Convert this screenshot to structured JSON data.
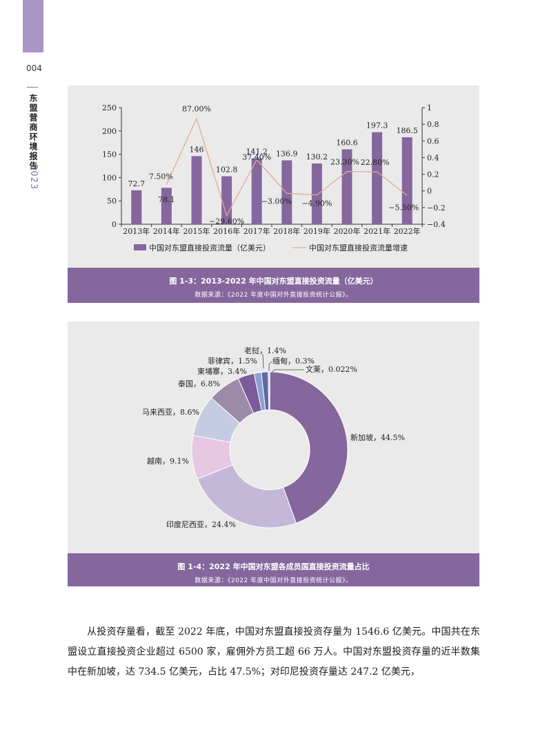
{
  "sidebar": {
    "page_number": "004",
    "book_title": "东盟营商环境报告",
    "book_year": "2023"
  },
  "figure1": {
    "caption": "图 1-3：2013-2022 年中国对东盟直接投资流量（亿美元）",
    "source": "数据来源：《2022 年度中国对外直接投资统计公报》。"
  },
  "figure2": {
    "caption": "图 1-4：2022 年中国对东盟各成员国直接投资流量占比",
    "source": "数据来源：《2022 年度中国对外直接投资统计公报》。"
  },
  "body": {
    "paragraph": "从投资存量看，截至 2022 年底，中国对东盟直接投资存量为 1546.6 亿美元。中国共在东盟设立直接投资企业超过 6500 家，雇佣外方员工超 66 万人。中国对东盟投资存量的近半数集中在新加坡，达 734.5 亿美元，占比 47.5%；对印尼投资存量达 247.2 亿美元，"
  },
  "chart_data": [
    {
      "type": "bar",
      "categories": [
        "2013年",
        "2014年",
        "2015年",
        "2016年",
        "2017年",
        "2018年",
        "2019年",
        "2020年",
        "2021年",
        "2022年"
      ],
      "series": [
        {
          "name": "中国对东盟直接投资流量（亿美元）",
          "type": "bar",
          "axis": "left",
          "values": [
            72.7,
            78.1,
            146,
            102.8,
            141.2,
            136.9,
            130.2,
            160.6,
            197.3,
            186.5
          ],
          "labels": [
            "72.7",
            "78.1",
            "146",
            "102.8",
            "141.2",
            "136.9",
            "130.2",
            "160.6",
            "197.3",
            "186.5"
          ],
          "color": "#85679e"
        },
        {
          "name": "中国对东盟直接投资流量增速",
          "type": "line",
          "axis": "right",
          "values": [
            null,
            0.075,
            0.87,
            -0.296,
            0.374,
            -0.03,
            -0.049,
            0.233,
            0.228,
            -0.055
          ],
          "labels": [
            "",
            "7.50%",
            "87.00%",
            "−29.60%",
            "37.40%",
            "−3.00%",
            "−4.90%",
            "23.30%",
            "22.80%",
            "−5.50%"
          ],
          "color": "#e3aa92"
        }
      ],
      "ylim": [
        0,
        250
      ],
      "yticks": [
        "0",
        "50",
        "100",
        "150",
        "200",
        "250"
      ],
      "y2lim": [
        -0.4,
        1
      ],
      "y2ticks": [
        "−0.4",
        "−0.2",
        "0",
        "0.2",
        "0.4",
        "0.6",
        "0.8",
        "1"
      ],
      "legend_position": "bottom"
    },
    {
      "type": "pie",
      "donut": true,
      "slices": [
        {
          "label": "新加坡，44.5%",
          "value": 44.5,
          "color": "#85679e"
        },
        {
          "label": "印度尼西亚，24.4%",
          "value": 24.4,
          "color": "#c3b8d8"
        },
        {
          "label": "越南，9.1%",
          "value": 9.1,
          "color": "#e6c8e0"
        },
        {
          "label": "马来西亚，8.6%",
          "value": 8.6,
          "color": "#c4cbe2"
        },
        {
          "label": "泰国，6.8%",
          "value": 6.8,
          "color": "#9c8ba8"
        },
        {
          "label": "柬埔寨，3.4%",
          "value": 3.4,
          "color": "#7d5a9a"
        },
        {
          "label": "菲律宾，1.5%",
          "value": 1.5,
          "color": "#8da1cf"
        },
        {
          "label": "老挝，1.4%",
          "value": 1.4,
          "color": "#5e68a8"
        },
        {
          "label": "缅甸，0.3%",
          "value": 0.3,
          "color": "#b9aed6"
        },
        {
          "label": "文莱，0.022%",
          "value": 0.022,
          "color": "#6a5596"
        }
      ]
    }
  ]
}
